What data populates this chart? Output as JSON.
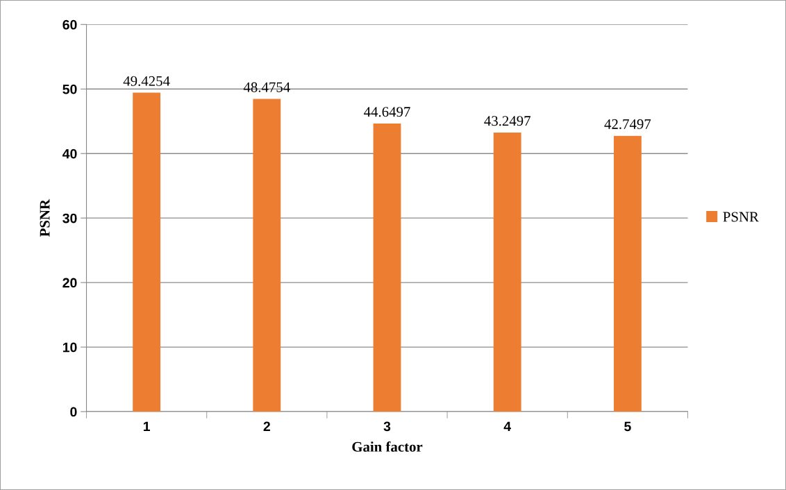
{
  "chart_data": {
    "type": "bar",
    "xlabel": "Gain factor",
    "ylabel": "PSNR",
    "categories": [
      "1",
      "2",
      "3",
      "4",
      "5"
    ],
    "series": [
      {
        "name": "PSNR",
        "color": "#ed7d31",
        "values": [
          49.4254,
          48.4754,
          44.6497,
          43.2497,
          42.7497
        ]
      }
    ],
    "ylim": [
      0,
      60
    ],
    "yticks": [
      0,
      10,
      20,
      30,
      40,
      50,
      60
    ],
    "grid": "y",
    "legend": "right",
    "data_labels": true
  }
}
